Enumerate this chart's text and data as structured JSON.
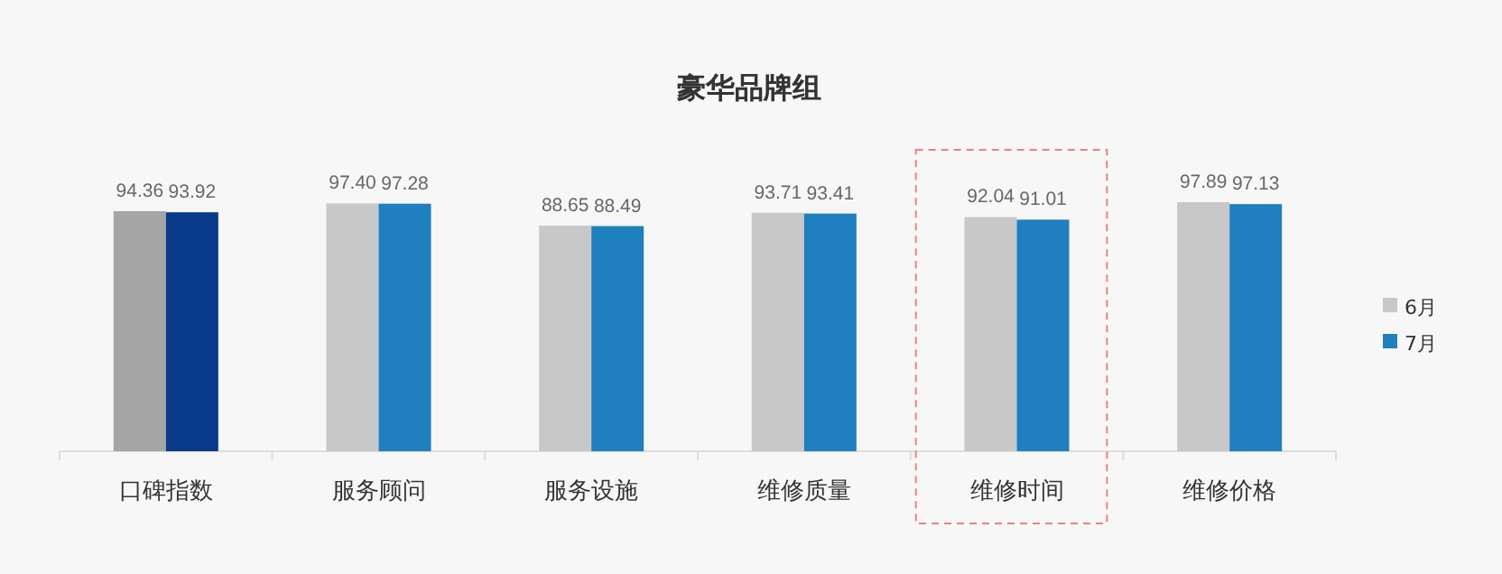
{
  "chart_data": {
    "type": "bar",
    "title": "豪华品牌组",
    "categories": [
      "口碑指数",
      "服务顾问",
      "服务设施",
      "维修质量",
      "维修时间",
      "维修价格"
    ],
    "series": [
      {
        "name": "6月",
        "color": "#c8c8c8",
        "colors": [
          "#a5a5a5",
          "#c8c8c8",
          "#c8c8c8",
          "#c8c8c8",
          "#c8c8c8",
          "#c8c8c8"
        ],
        "values": [
          94.36,
          97.4,
          88.65,
          93.71,
          92.04,
          97.89
        ],
        "value_labels": [
          "94.36",
          "97.40",
          "88.65",
          "93.71",
          "92.04",
          "97.89"
        ]
      },
      {
        "name": "7月",
        "color": "#1f7fbf",
        "colors": [
          "#0a3a8a",
          "#1f7fbf",
          "#1f7fbf",
          "#1f7fbf",
          "#1f7fbf",
          "#1f7fbf"
        ],
        "values": [
          93.92,
          97.28,
          88.49,
          93.41,
          91.01,
          97.13
        ],
        "value_labels": [
          "93.92",
          "97.28",
          "88.49",
          "93.41",
          "91.01",
          "97.13"
        ]
      }
    ],
    "legend": "right"
  }
}
